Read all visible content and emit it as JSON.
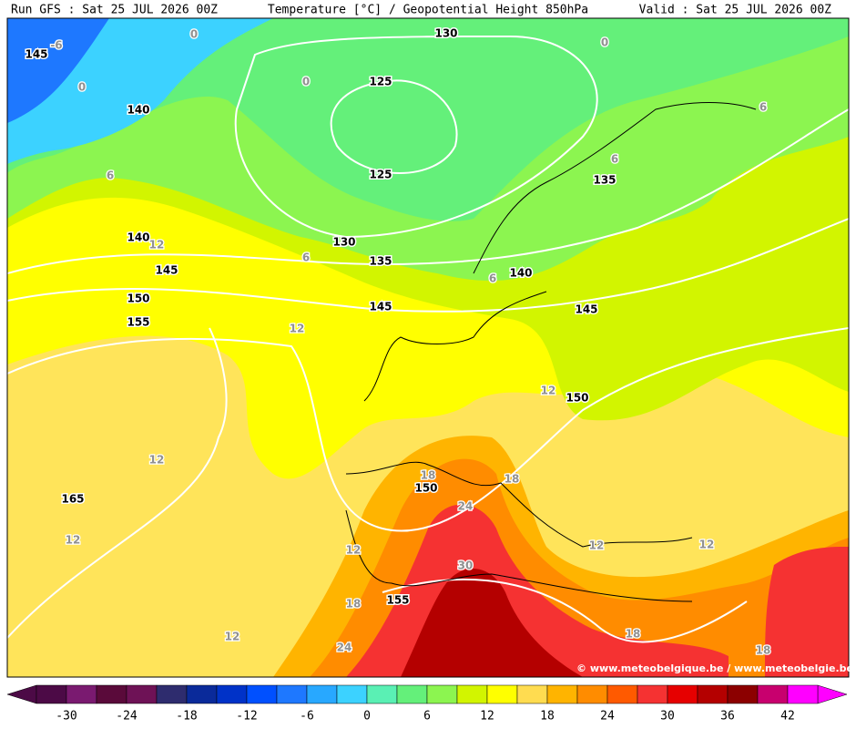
{
  "header": {
    "run": "Run GFS : Sat 25 JUL 2026 00Z",
    "title": "Temperature [°C] / Geopotential Height 850hPa",
    "valid": "Valid : Sat 25 JUL 2026 00Z"
  },
  "map": {
    "height_labels": [
      145,
      130,
      125,
      140,
      125,
      140,
      130,
      145,
      135,
      135,
      140,
      150,
      145,
      145,
      155,
      150,
      165,
      150,
      155
    ],
    "temperature_labels": [
      -6,
      0,
      0,
      0,
      0,
      6,
      12,
      6,
      6,
      6,
      6,
      12,
      12,
      12,
      18,
      24,
      18,
      12,
      12,
      12,
      12,
      30,
      18,
      12,
      24,
      18,
      18
    ],
    "copyright": "© www.meteobelgique.be / www.meteobelgie.be"
  },
  "colorbar": {
    "ticks": [
      -30,
      -24,
      -18,
      -12,
      -6,
      0,
      6,
      12,
      18,
      24,
      30,
      36,
      42
    ],
    "colors": [
      "#4c0a46",
      "#7a1a70",
      "#5a0a3a",
      "#6e1256",
      "#2e2c6e",
      "#0a2a9a",
      "#0032c8",
      "#0050ff",
      "#1e78ff",
      "#28a8ff",
      "#3cd2ff",
      "#5af0b4",
      "#64f07a",
      "#8cf550",
      "#d2f500",
      "#ffff00",
      "#ffdc50",
      "#ffb400",
      "#ff8c00",
      "#ff5a00",
      "#f53232",
      "#e60000",
      "#b40000",
      "#8c0000",
      "#c8006e",
      "#ff00ff"
    ]
  }
}
